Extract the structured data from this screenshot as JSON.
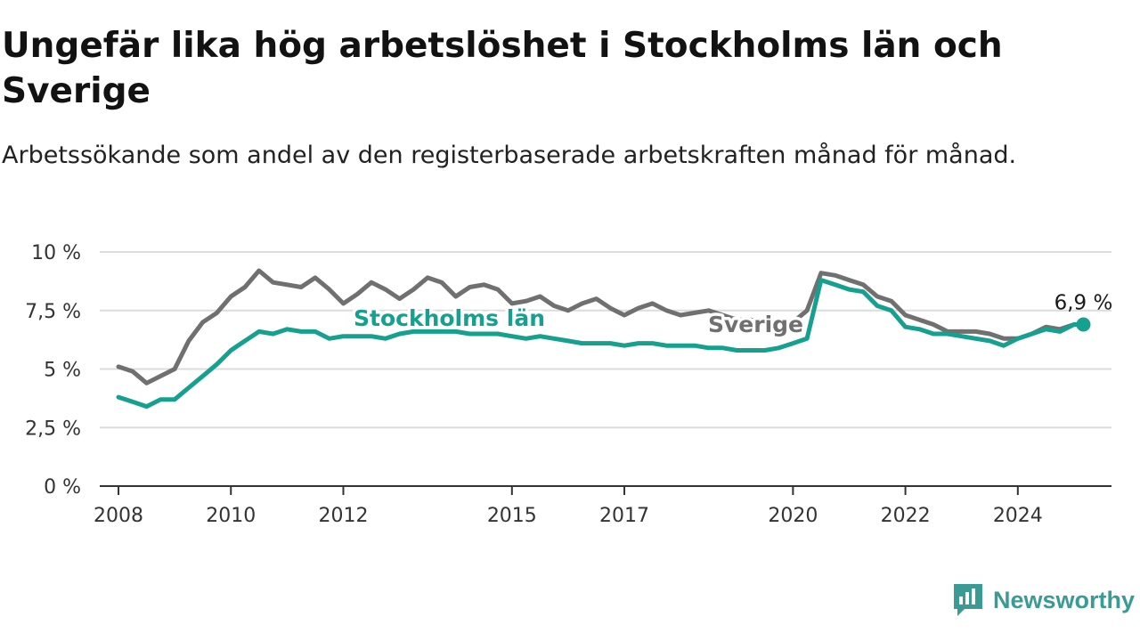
{
  "title": "Ungefär lika hög arbetslöshet i Stockholms län och Sverige",
  "subtitle": "Arbetssökande som andel av den registerbaserade arbetskraften månad för månad.",
  "brand": {
    "name": "Newsworthy",
    "icon": "newsworthy-logo-icon"
  },
  "colors": {
    "sverige": "#707070",
    "stockholm": "#15a08f",
    "grid": "#dcdcdc",
    "axis": "#333333"
  },
  "chart_data": {
    "type": "line",
    "x_ticks": [
      "2008",
      "2010",
      "2012",
      "2015",
      "2017",
      "2020",
      "2022",
      "2024"
    ],
    "y_ticks": [
      "0 %",
      "2,5 %",
      "5 %",
      "7,5 %",
      "10 %"
    ],
    "y_tick_values": [
      0,
      2.5,
      5,
      7.5,
      10
    ],
    "ylim": [
      0,
      10
    ],
    "xlim": [
      "2007-09",
      "2025-09"
    ],
    "grid": true,
    "end_label": "6,9 %",
    "series": [
      {
        "name": "Sverige",
        "x": [
          "2008-01",
          "2008-04",
          "2008-07",
          "2008-10",
          "2009-01",
          "2009-04",
          "2009-07",
          "2009-10",
          "2010-01",
          "2010-04",
          "2010-07",
          "2010-10",
          "2011-01",
          "2011-04",
          "2011-07",
          "2011-10",
          "2012-01",
          "2012-04",
          "2012-07",
          "2012-10",
          "2013-01",
          "2013-04",
          "2013-07",
          "2013-10",
          "2014-01",
          "2014-04",
          "2014-07",
          "2014-10",
          "2015-01",
          "2015-04",
          "2015-07",
          "2015-10",
          "2016-01",
          "2016-04",
          "2016-07",
          "2016-10",
          "2017-01",
          "2017-04",
          "2017-07",
          "2017-10",
          "2018-01",
          "2018-04",
          "2018-07",
          "2018-10",
          "2019-01",
          "2019-04",
          "2019-07",
          "2019-10",
          "2020-01",
          "2020-04",
          "2020-07",
          "2020-10",
          "2021-01",
          "2021-04",
          "2021-07",
          "2021-10",
          "2022-01",
          "2022-04",
          "2022-07",
          "2022-10",
          "2023-01",
          "2023-04",
          "2023-07",
          "2023-10",
          "2024-01",
          "2024-04",
          "2024-07",
          "2024-10",
          "2025-01",
          "2025-03"
        ],
        "values": [
          5.1,
          4.9,
          4.4,
          4.7,
          5.0,
          6.2,
          7.0,
          7.4,
          8.1,
          8.5,
          9.2,
          8.7,
          8.6,
          8.5,
          8.9,
          8.4,
          7.8,
          8.2,
          8.7,
          8.4,
          8.0,
          8.4,
          8.9,
          8.7,
          8.1,
          8.5,
          8.6,
          8.4,
          7.8,
          7.9,
          8.1,
          7.7,
          7.5,
          7.8,
          8.0,
          7.6,
          7.3,
          7.6,
          7.8,
          7.5,
          7.3,
          7.4,
          7.5,
          7.3,
          7.1,
          7.1,
          7.0,
          6.8,
          7.0,
          7.5,
          9.1,
          9.0,
          8.8,
          8.6,
          8.1,
          7.9,
          7.3,
          7.1,
          6.9,
          6.6,
          6.6,
          6.6,
          6.5,
          6.3,
          6.3,
          6.5,
          6.8,
          6.7,
          6.9,
          6.9
        ]
      },
      {
        "name": "Stockholms län",
        "x": [
          "2008-01",
          "2008-04",
          "2008-07",
          "2008-10",
          "2009-01",
          "2009-04",
          "2009-07",
          "2009-10",
          "2010-01",
          "2010-04",
          "2010-07",
          "2010-10",
          "2011-01",
          "2011-04",
          "2011-07",
          "2011-10",
          "2012-01",
          "2012-04",
          "2012-07",
          "2012-10",
          "2013-01",
          "2013-04",
          "2013-07",
          "2013-10",
          "2014-01",
          "2014-04",
          "2014-07",
          "2014-10",
          "2015-01",
          "2015-04",
          "2015-07",
          "2015-10",
          "2016-01",
          "2016-04",
          "2016-07",
          "2016-10",
          "2017-01",
          "2017-04",
          "2017-07",
          "2017-10",
          "2018-01",
          "2018-04",
          "2018-07",
          "2018-10",
          "2019-01",
          "2019-04",
          "2019-07",
          "2019-10",
          "2020-01",
          "2020-04",
          "2020-07",
          "2020-10",
          "2021-01",
          "2021-04",
          "2021-07",
          "2021-10",
          "2022-01",
          "2022-04",
          "2022-07",
          "2022-10",
          "2023-01",
          "2023-04",
          "2023-07",
          "2023-10",
          "2024-01",
          "2024-04",
          "2024-07",
          "2024-10",
          "2025-01",
          "2025-03"
        ],
        "values": [
          3.8,
          3.6,
          3.4,
          3.7,
          3.7,
          4.2,
          4.7,
          5.2,
          5.8,
          6.2,
          6.6,
          6.5,
          6.7,
          6.6,
          6.6,
          6.3,
          6.4,
          6.4,
          6.4,
          6.3,
          6.5,
          6.6,
          6.6,
          6.6,
          6.6,
          6.5,
          6.5,
          6.5,
          6.4,
          6.3,
          6.4,
          6.3,
          6.2,
          6.1,
          6.1,
          6.1,
          6.0,
          6.1,
          6.1,
          6.0,
          6.0,
          6.0,
          5.9,
          5.9,
          5.8,
          5.8,
          5.8,
          5.9,
          6.1,
          6.3,
          8.8,
          8.6,
          8.4,
          8.3,
          7.7,
          7.5,
          6.8,
          6.7,
          6.5,
          6.5,
          6.4,
          6.3,
          6.2,
          6.0,
          6.3,
          6.5,
          6.7,
          6.6,
          6.9,
          6.9
        ]
      }
    ],
    "series_labels": [
      "Stockholms län",
      "Sverige"
    ]
  }
}
